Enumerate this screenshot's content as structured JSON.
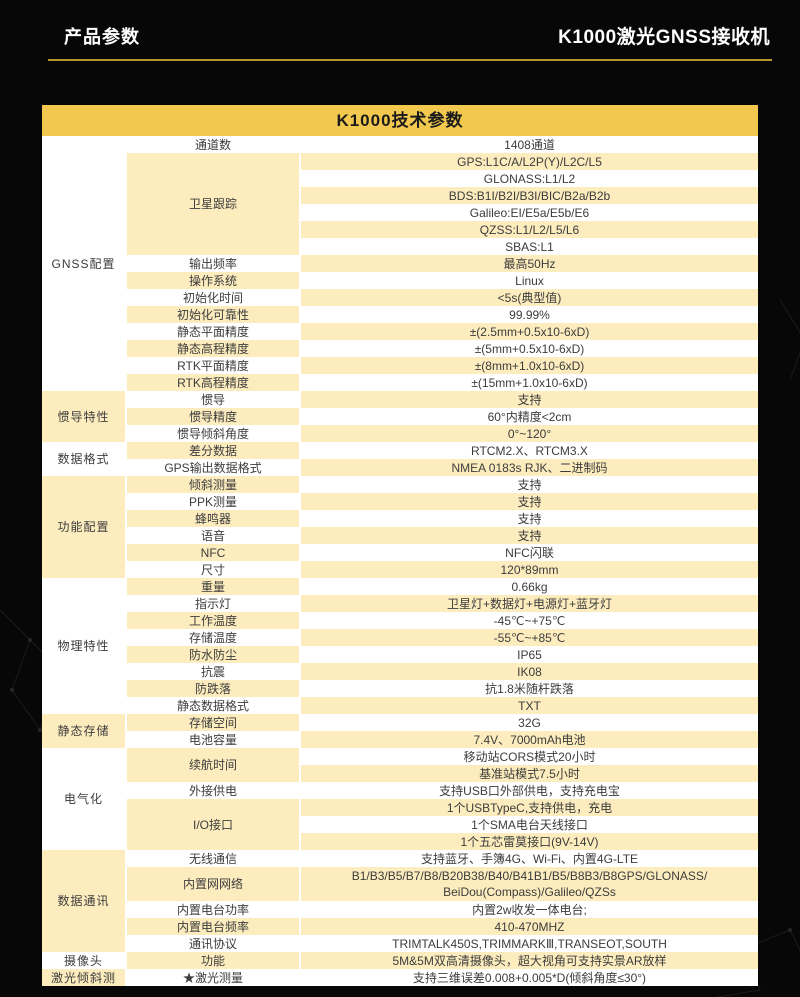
{
  "page_header": {
    "left_title": "产品参数",
    "right_title": "K1000激光GNSS接收机"
  },
  "colors": {
    "page_bg": "#070707",
    "gold_header": "#F2C84F",
    "row_yellow": "#FCECBE",
    "row_white": "#FFFFFF",
    "underline_gold": "#B8962E"
  },
  "table": {
    "title": "K1000技术参数",
    "sections": [
      {
        "category": "GNSS配置",
        "groups": [
          {
            "param": "通道数",
            "values": [
              "1408通道"
            ]
          },
          {
            "param": "卫星跟踪",
            "values": [
              "GPS:L1C/A/L2P(Y)/L2C/L5",
              "GLONASS:L1/L2",
              "BDS:B1I/B2I/B3I/BIC/B2a/B2b",
              "Galileo:EI/E5a/E5b/E6",
              "QZSS:L1/L2/L5/L6",
              "SBAS:L1"
            ]
          },
          {
            "param": "输出频率",
            "values": [
              "最高50Hz"
            ]
          },
          {
            "param": "操作系统",
            "values": [
              "Linux"
            ]
          },
          {
            "param": "初始化时间",
            "values": [
              "<5s(典型值)"
            ]
          },
          {
            "param": "初始化可靠性",
            "values": [
              "99.99%"
            ]
          },
          {
            "param": "静态平面精度",
            "values": [
              "±(2.5mm+0.5x10-6xD)"
            ]
          },
          {
            "param": "静态高程精度",
            "values": [
              "±(5mm+0.5x10-6xD)"
            ]
          },
          {
            "param": "RTK平面精度",
            "values": [
              "±(8mm+1.0x10-6xD)"
            ]
          },
          {
            "param": "RTK高程精度",
            "values": [
              "±(15mm+1.0x10-6xD)"
            ]
          }
        ]
      },
      {
        "category": "惯导特性",
        "groups": [
          {
            "param": "惯导",
            "values": [
              "支持"
            ]
          },
          {
            "param": "惯导精度",
            "values": [
              "60°内精度<2cm"
            ]
          },
          {
            "param": "惯导倾斜角度",
            "values": [
              "0°~120°"
            ]
          }
        ]
      },
      {
        "category": "数据格式",
        "groups": [
          {
            "param": "差分数据",
            "values": [
              "RTCM2.X、RTCM3.X"
            ]
          },
          {
            "param": "GPS输出数据格式",
            "values": [
              "NMEA 0183s RJK、二进制码"
            ]
          }
        ]
      },
      {
        "category": "功能配置",
        "groups": [
          {
            "param": "倾斜测量",
            "values": [
              "支持"
            ]
          },
          {
            "param": "PPK测量",
            "values": [
              "支持"
            ]
          },
          {
            "param": "蜂鸣器",
            "values": [
              "支持"
            ]
          },
          {
            "param": "语音",
            "values": [
              "支持"
            ]
          },
          {
            "param": "NFC",
            "values": [
              "NFC闪联"
            ]
          },
          {
            "param": "尺寸",
            "values": [
              "120*89mm"
            ]
          }
        ]
      },
      {
        "category": "物理特性",
        "groups": [
          {
            "param": "重量",
            "values": [
              "0.66kg"
            ]
          },
          {
            "param": "指示灯",
            "values": [
              "卫星灯+数据灯+电源灯+蓝牙灯"
            ]
          },
          {
            "param": "工作温度",
            "values": [
              "-45℃~+75℃"
            ]
          },
          {
            "param": "存储温度",
            "values": [
              "-55℃~+85℃"
            ]
          },
          {
            "param": "防水防尘",
            "values": [
              "IP65"
            ]
          },
          {
            "param": "抗震",
            "values": [
              "IK08"
            ]
          },
          {
            "param": "防跌落",
            "values": [
              "抗1.8米随杆跌落"
            ]
          },
          {
            "param": "静态数据格式",
            "values": [
              "TXT"
            ]
          }
        ]
      },
      {
        "category": "静态存储",
        "groups": [
          {
            "param": "存储空间",
            "values": [
              "32G"
            ]
          },
          {
            "param": "电池容量",
            "values": [
              "7.4V、7000mAh电池"
            ]
          }
        ]
      },
      {
        "category": "电气化",
        "groups": [
          {
            "param": "续航时间",
            "values": [
              "移动站CORS模式20小时",
              "基准站模式7.5小时"
            ]
          },
          {
            "param": "外接供电",
            "values": [
              "支持USB口外部供电，支持充电宝"
            ]
          },
          {
            "param": "I/O接口",
            "values": [
              "1个USBTypeC,支持供电，充电",
              "1个SMA电台天线接口",
              "1个五芯雷莫接口(9V-14V)"
            ]
          }
        ]
      },
      {
        "category": "数据通讯",
        "groups": [
          {
            "param": "无线通信",
            "values": [
              "支持蓝牙、手簿4G、Wi-Fi、内置4G-LTE"
            ]
          },
          {
            "param": "内置网网络",
            "values": [
              "B1/B3/B5/B7/B8/B20B38/B40/B41B1/B5/B8B3/B8GPS/GLONASS/\nBeiDou(Compass)/Galileo/QZSs"
            ]
          },
          {
            "param": "内置电台功率",
            "values": [
              "内置2w收发一体电台;"
            ]
          },
          {
            "param": "内置电台频率",
            "values": [
              "410-470MHZ"
            ]
          },
          {
            "param": "通讯协议",
            "values": [
              "TRIMTALK450S,TRIMMARKⅢ,TRANSEOT,SOUTH"
            ]
          }
        ]
      },
      {
        "category": "摄像头",
        "groups": [
          {
            "param": "功能",
            "values": [
              "5M&5M双高清摄像头，超大视角可支持实景AR放样"
            ]
          }
        ]
      },
      {
        "category": "激光倾斜测",
        "groups": [
          {
            "param": "★激光测量",
            "values": [
              "支持三维误差0.008+0.005*D(倾斜角度≤30°)"
            ]
          }
        ]
      }
    ]
  }
}
